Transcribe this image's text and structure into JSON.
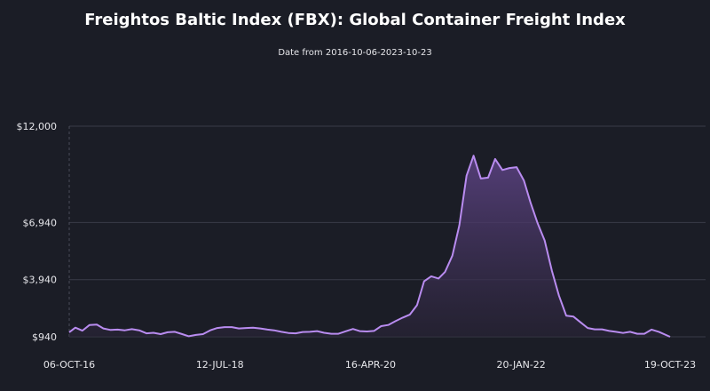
{
  "chart_data": {
    "type": "area",
    "title": "Freightos Baltic Index (FBX): Global Container Freight Index",
    "subtitle": "Date from 2016-10-06-2023-10-23",
    "xlabel": "",
    "ylabel": "",
    "ylim": [
      940,
      12000
    ],
    "y_ticks": [
      {
        "value": 940,
        "label": "$940"
      },
      {
        "value": 3940,
        "label": "$3,940"
      },
      {
        "value": 6940,
        "label": "$6,940"
      },
      {
        "value": 12000,
        "label": "$12,000"
      }
    ],
    "x_ticks": [
      {
        "date": "2016-10-06",
        "label": "06-OCT-16"
      },
      {
        "date": "2018-07-12",
        "label": "12-JUL-18"
      },
      {
        "date": "2020-04-16",
        "label": "16-APR-20"
      },
      {
        "date": "2022-01-20",
        "label": "20-JAN-22"
      },
      {
        "date": "2023-10-19",
        "label": "19-OCT-23"
      }
    ],
    "colors": {
      "line": "#b98cf0",
      "fill_top": "#5e4486",
      "fill_bottom": "#2a2438",
      "grid": "#3a3c48"
    },
    "grid": "horizontal",
    "series": [
      {
        "x": [
          "2016-10-06",
          "2016-11-01",
          "2016-12-01",
          "2017-01-01",
          "2017-02-01",
          "2017-03-01",
          "2017-04-01",
          "2017-05-01",
          "2017-06-01",
          "2017-07-01",
          "2017-08-01",
          "2017-09-01",
          "2017-10-01",
          "2017-11-01",
          "2017-12-01",
          "2018-01-01",
          "2018-02-01",
          "2018-03-01",
          "2018-04-01",
          "2018-05-01",
          "2018-06-01",
          "2018-07-01",
          "2018-08-01",
          "2018-09-01",
          "2018-10-01",
          "2018-11-01",
          "2018-12-01",
          "2019-01-01",
          "2019-02-01",
          "2019-03-01",
          "2019-04-01",
          "2019-05-01",
          "2019-06-01",
          "2019-07-01",
          "2019-08-01",
          "2019-09-01",
          "2019-10-01",
          "2019-11-01",
          "2019-12-01",
          "2020-01-01",
          "2020-02-01",
          "2020-03-01",
          "2020-04-01",
          "2020-05-01",
          "2020-06-01",
          "2020-07-01",
          "2020-08-01",
          "2020-09-01",
          "2020-10-01",
          "2020-11-01",
          "2020-12-01",
          "2021-01-01",
          "2021-02-01",
          "2021-03-01",
          "2021-04-01",
          "2021-05-01",
          "2021-06-01",
          "2021-07-01",
          "2021-08-01",
          "2021-09-01",
          "2021-10-01",
          "2021-11-01",
          "2021-12-01",
          "2022-01-01",
          "2022-02-01",
          "2022-03-01",
          "2022-04-01",
          "2022-05-01",
          "2022-06-01",
          "2022-07-01",
          "2022-08-01",
          "2022-09-01",
          "2022-10-01",
          "2022-11-01",
          "2022-12-01",
          "2023-01-01",
          "2023-02-01",
          "2023-03-01",
          "2023-04-01",
          "2023-05-01",
          "2023-06-01",
          "2023-07-01",
          "2023-08-01",
          "2023-09-01",
          "2023-10-19"
        ],
        "values": [
          1180,
          1420,
          1260,
          1560,
          1580,
          1380,
          1300,
          1320,
          1280,
          1340,
          1280,
          1120,
          1150,
          1080,
          1180,
          1200,
          1080,
          970,
          1040,
          1080,
          1280,
          1400,
          1450,
          1450,
          1380,
          1400,
          1420,
          1380,
          1320,
          1280,
          1200,
          1140,
          1120,
          1190,
          1200,
          1240,
          1150,
          1100,
          1100,
          1230,
          1350,
          1240,
          1220,
          1250,
          1500,
          1560,
          1760,
          1950,
          2100,
          2600,
          3850,
          4120,
          4000,
          4350,
          5200,
          6800,
          9400,
          10450,
          9250,
          9300,
          10280,
          9700,
          9800,
          9850,
          9150,
          8000,
          6900,
          6000,
          4400,
          3100,
          2050,
          2000,
          1700,
          1400,
          1330,
          1330,
          1250,
          1200,
          1140,
          1200,
          1100,
          1100,
          1320,
          1200,
          940
        ]
      }
    ]
  }
}
